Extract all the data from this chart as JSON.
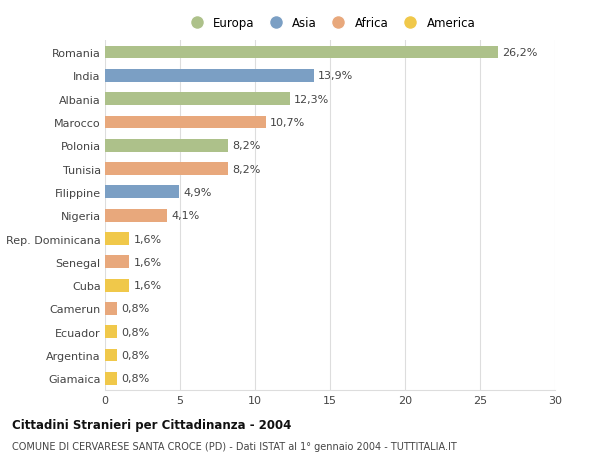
{
  "countries": [
    "Romania",
    "India",
    "Albania",
    "Marocco",
    "Polonia",
    "Tunisia",
    "Filippine",
    "Nigeria",
    "Rep. Dominicana",
    "Senegal",
    "Cuba",
    "Camerun",
    "Ecuador",
    "Argentina",
    "Giamaica"
  ],
  "values": [
    26.2,
    13.9,
    12.3,
    10.7,
    8.2,
    8.2,
    4.9,
    4.1,
    1.6,
    1.6,
    1.6,
    0.8,
    0.8,
    0.8,
    0.8
  ],
  "labels": [
    "26,2%",
    "13,9%",
    "12,3%",
    "10,7%",
    "8,2%",
    "8,2%",
    "4,9%",
    "4,1%",
    "1,6%",
    "1,6%",
    "1,6%",
    "0,8%",
    "0,8%",
    "0,8%",
    "0,8%"
  ],
  "continents": [
    "Europa",
    "Asia",
    "Europa",
    "Africa",
    "Europa",
    "Africa",
    "Asia",
    "Africa",
    "America",
    "Africa",
    "America",
    "Africa",
    "America",
    "America",
    "America"
  ],
  "colors": {
    "Europa": "#adc18a",
    "Asia": "#7b9fc4",
    "Africa": "#e8a87c",
    "America": "#f0c84a"
  },
  "legend_order": [
    "Europa",
    "Asia",
    "Africa",
    "America"
  ],
  "title": "Cittadini Stranieri per Cittadinanza - 2004",
  "subtitle": "COMUNE DI CERVARESE SANTA CROCE (PD) - Dati ISTAT al 1° gennaio 2004 - TUTTITALIA.IT",
  "xlim": [
    0,
    30
  ],
  "xticks": [
    0,
    5,
    10,
    15,
    20,
    25,
    30
  ],
  "background_color": "#ffffff",
  "grid_color": "#dddddd",
  "bar_height": 0.55,
  "label_fontsize": 8,
  "ytick_fontsize": 8,
  "xtick_fontsize": 8
}
